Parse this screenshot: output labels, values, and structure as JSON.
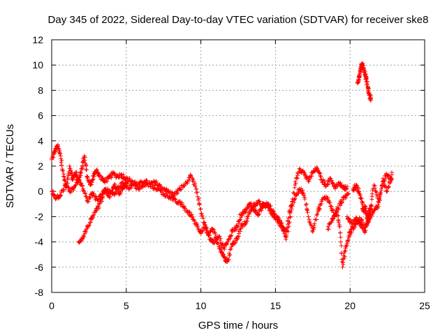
{
  "chart_data": {
    "type": "scatter",
    "title": "Day 345 of 2022, Sidereal Day-to-day VTEC variation (SDTVAR) for receiver ske8",
    "xlabel": "GPS time / hours",
    "ylabel": "SDTVAR / TECUs",
    "xlim": [
      0,
      25
    ],
    "ylim": [
      -8,
      12
    ],
    "xticks": [
      0,
      5,
      10,
      15,
      20,
      25
    ],
    "yticks": [
      -8,
      -6,
      -4,
      -2,
      0,
      2,
      4,
      6,
      8,
      10,
      12
    ],
    "grid": true,
    "marker": "+",
    "series": [
      {
        "name": "SDTVAR",
        "color": "#ff0000",
        "segments": [
          {
            "x": [
              0.0,
              0.2,
              0.4,
              0.6,
              0.8,
              1.0,
              1.2,
              1.4,
              1.6,
              1.8,
              2.0,
              2.2,
              2.4,
              2.6,
              2.8,
              3.0,
              3.2,
              3.5,
              3.8,
              4.1,
              4.4,
              4.7,
              5.0,
              5.4,
              5.8,
              6.2,
              6.6,
              7.0,
              7.4,
              7.8,
              8.2,
              8.6,
              9.0,
              9.3,
              9.6,
              9.9,
              10.2,
              10.5,
              10.8,
              11.1,
              11.4,
              11.6,
              11.8,
              12.1,
              12.4,
              12.7,
              13.0,
              13.3,
              13.6,
              13.9,
              14.2,
              14.5,
              14.8,
              15.1,
              15.4,
              15.7,
              16.0,
              16.3,
              16.6,
              16.9,
              17.2,
              17.5,
              17.8,
              18.1,
              18.4,
              18.7,
              19.0,
              19.3,
              19.6,
              19.8
            ],
            "y": [
              2.5,
              3.2,
              3.6,
              2.8,
              1.2,
              0.4,
              2.0,
              0.9,
              1.5,
              0.8,
              1.8,
              2.8,
              1.0,
              0.5,
              1.2,
              1.7,
              1.2,
              0.8,
              1.0,
              1.4,
              1.2,
              1.3,
              1.0,
              0.8,
              0.5,
              0.8,
              0.6,
              0.7,
              0.3,
              0.0,
              -0.3,
              0.2,
              0.6,
              1.2,
              0.5,
              -1.0,
              -2.5,
              -3.5,
              -3.0,
              -4.0,
              -4.8,
              -5.3,
              -5.5,
              -4.2,
              -3.8,
              -2.8,
              -2.5,
              -1.6,
              -1.0,
              -0.8,
              -1.2,
              -1.0,
              -1.6,
              -2.0,
              -2.5,
              -3.8,
              -2.0,
              0.5,
              1.8,
              1.5,
              0.8,
              1.5,
              1.8,
              0.9,
              0.5,
              1.0,
              0.3,
              0.6,
              0.2,
              0.4
            ]
          },
          {
            "x": [
              0.0,
              0.3,
              0.6,
              0.9,
              1.2,
              1.5,
              1.8,
              2.1,
              2.4,
              2.7,
              3.0,
              3.3,
              3.6,
              3.9,
              4.2,
              4.5,
              4.8,
              5.1,
              5.5,
              5.9,
              6.3,
              6.7,
              7.1,
              7.5,
              7.9,
              8.3,
              8.7,
              9.1,
              9.4,
              9.7,
              10.0,
              10.3,
              10.6,
              10.9,
              11.2,
              11.5,
              11.8,
              12.1,
              12.4,
              12.7,
              13.0,
              13.3,
              13.6,
              13.9,
              14.2,
              14.5,
              14.8,
              15.1,
              15.4,
              15.7,
              16.0,
              16.3,
              16.6,
              16.9,
              17.2,
              17.5,
              17.8,
              18.1,
              18.4,
              18.7,
              19.0,
              19.3,
              19.6,
              19.9
            ],
            "y": [
              0.0,
              -0.5,
              -0.3,
              0.5,
              0.0,
              0.3,
              1.0,
              0.2,
              -0.8,
              -0.2,
              -0.6,
              -0.4,
              0.2,
              0.0,
              -0.3,
              0.4,
              0.6,
              0.3,
              0.5,
              0.2,
              0.6,
              0.4,
              0.2,
              -0.2,
              -0.4,
              -0.8,
              -1.0,
              -1.6,
              -2.0,
              -2.6,
              -3.2,
              -2.8,
              -3.8,
              -4.0,
              -3.6,
              -4.5,
              -4.0,
              -3.2,
              -2.8,
              -1.8,
              -1.5,
              -1.0,
              -1.5,
              -1.8,
              -1.0,
              -1.3,
              -1.8,
              -2.2,
              -2.8,
              -3.2,
              -1.2,
              -0.6,
              0.2,
              -0.2,
              -2.0,
              -3.2,
              -1.8,
              -0.8,
              -0.4,
              -1.2,
              -2.0,
              -1.0,
              -0.5,
              -0.2
            ]
          },
          {
            "x": [
              1.8,
              2.1,
              2.4,
              2.7,
              3.0,
              3.3,
              3.6,
              3.9,
              4.2,
              4.5,
              4.8,
              5.1
            ],
            "y": [
              -4.0,
              -3.6,
              -2.8,
              -2.2,
              -1.5,
              -0.8,
              0.0,
              -0.4,
              0.5,
              -0.2,
              0.3,
              0.8
            ]
          },
          {
            "x": [
              18.5,
              18.8,
              19.1,
              19.3,
              19.5,
              19.7,
              19.9,
              20.1,
              20.4,
              20.7,
              21.0,
              21.3,
              21.6,
              21.9,
              22.2,
              22.5,
              22.8
            ],
            "y": [
              -3.0,
              -2.2,
              -1.6,
              -2.8,
              -6.0,
              -4.5,
              -3.6,
              -3.0,
              -2.6,
              -2.2,
              -2.8,
              -2.0,
              0.5,
              -0.8,
              0.8,
              1.3,
              1.0
            ]
          },
          {
            "x": [
              19.8,
              20.1,
              20.4,
              20.7,
              21.0,
              21.3,
              21.6,
              21.9,
              22.2,
              22.5,
              22.8
            ],
            "y": [
              -2.0,
              -2.5,
              -2.2,
              -2.6,
              -3.2,
              -2.2,
              -1.5,
              -1.2,
              0.8,
              0.0,
              1.5
            ]
          },
          {
            "x": [
              20.2,
              20.4,
              20.6,
              20.8,
              20.9,
              21.0,
              21.1,
              21.2,
              21.3,
              21.4
            ],
            "y": [
              0.2,
              0.5,
              0.0,
              -0.8,
              -1.6,
              -1.2,
              -1.8,
              -2.4,
              -1.6,
              -1.2
            ]
          },
          {
            "x": [
              20.5,
              20.6,
              20.7,
              20.8,
              20.9,
              21.0,
              21.1,
              21.2,
              21.3,
              21.4
            ],
            "y": [
              8.6,
              9.0,
              9.6,
              10.1,
              9.8,
              9.2,
              8.9,
              8.1,
              7.6,
              7.3
            ]
          }
        ]
      }
    ]
  }
}
